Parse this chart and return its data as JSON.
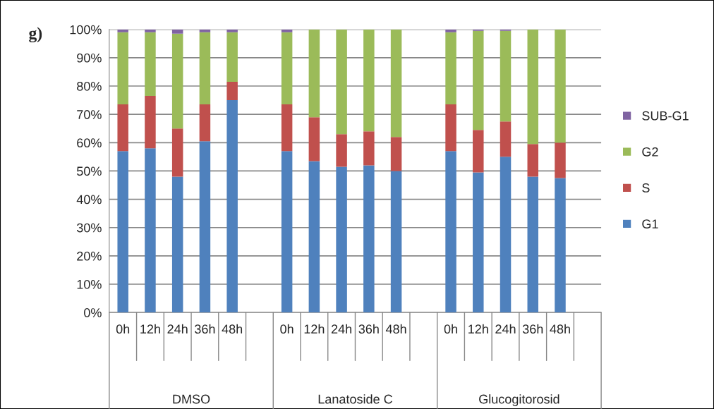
{
  "chart_data": {
    "type": "bar",
    "stacked": true,
    "categories": [
      "0h",
      "12h",
      "24h",
      "36h",
      "48h",
      null,
      "0h",
      "12h",
      "24h",
      "36h",
      "48h",
      null,
      "0h",
      "12h",
      "24h",
      "36h",
      "48h",
      null
    ],
    "series": [
      {
        "name": "G1",
        "color": "#4f81bd",
        "values": [
          57,
          58,
          48,
          60.5,
          75,
          null,
          57,
          53.5,
          51.5,
          52,
          50,
          null,
          57,
          49.5,
          55,
          48,
          47.5,
          null
        ]
      },
      {
        "name": "S",
        "color": "#c0504d",
        "values": [
          16.5,
          18.5,
          17,
          13,
          6.5,
          null,
          16.5,
          15.5,
          11.5,
          12,
          12,
          null,
          16.5,
          15,
          12.5,
          11.5,
          12.5,
          null
        ]
      },
      {
        "name": "G2",
        "color": "#9bbb59",
        "values": [
          25.5,
          22.5,
          33.5,
          25.5,
          17.5,
          null,
          25.5,
          31,
          37,
          36,
          38,
          null,
          25.5,
          35,
          32,
          40.5,
          40,
          null
        ]
      },
      {
        "name": "SUB-G1",
        "color": "#8064a2",
        "values": [
          1,
          1,
          1.5,
          1,
          1,
          null,
          1,
          0,
          0,
          0,
          0,
          null,
          1,
          0.5,
          0.5,
          0,
          0,
          null
        ]
      }
    ],
    "ylim": [
      0,
      100
    ],
    "yticks": [
      {
        "value": 0,
        "label": "0%"
      },
      {
        "value": 10,
        "label": "10%"
      },
      {
        "value": 20,
        "label": "20%"
      },
      {
        "value": 30,
        "label": "30%"
      },
      {
        "value": 40,
        "label": "40%"
      },
      {
        "value": 50,
        "label": "50%"
      },
      {
        "value": 60,
        "label": "60%"
      },
      {
        "value": 70,
        "label": "70%"
      },
      {
        "value": 80,
        "label": "80%"
      },
      {
        "value": 90,
        "label": "90%"
      },
      {
        "value": 100,
        "label": "100%"
      }
    ],
    "grid": "y",
    "legend": "right",
    "annotations": [
      "g)",
      "DMSO",
      "Lanatoside C",
      "Glucogitorosid"
    ]
  }
}
